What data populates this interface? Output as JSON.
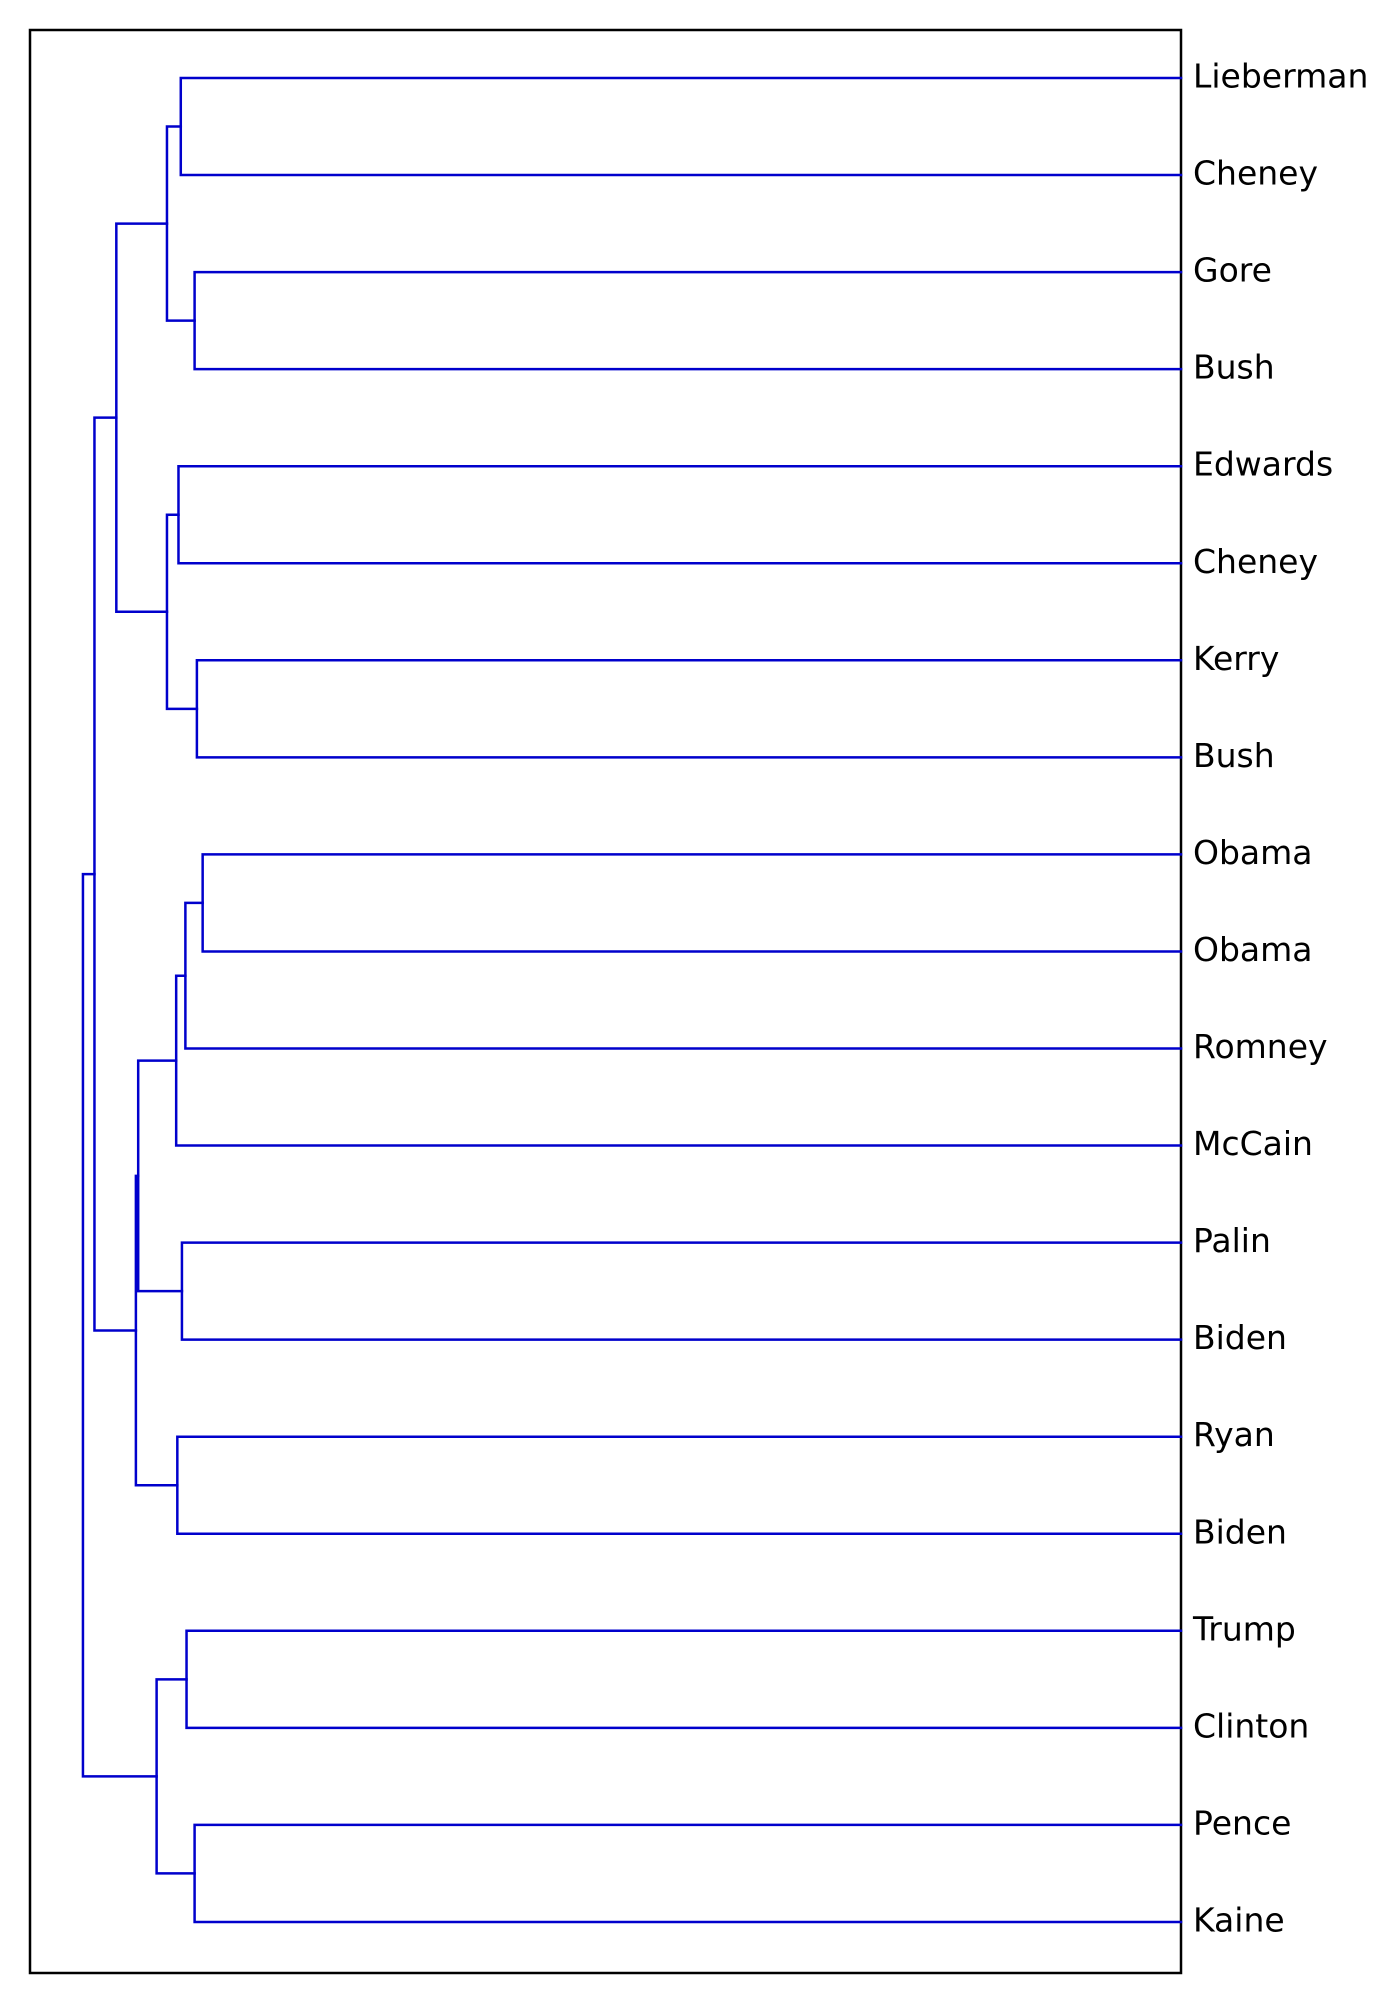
{
  "chart_data": {
    "type": "dendrogram",
    "orientation": "right",
    "link_color": "#0000cc",
    "leaves": [
      "Lieberman",
      "Cheney",
      "Gore",
      "Bush",
      "Edwards",
      "Cheney",
      "Kerry",
      "Bush",
      "Obama",
      "Obama",
      "Romney",
      "McCain",
      "Palin",
      "Biden",
      "Ryan",
      "Biden",
      "Trump",
      "Clinton",
      "Pence",
      "Kaine"
    ],
    "merges": [
      {
        "left": "L0",
        "right": "L1",
        "height": 0.869
      },
      {
        "left": "L2",
        "right": "L3",
        "height": 0.857
      },
      {
        "left": "M0",
        "right": "M1",
        "height": 0.881
      },
      {
        "left": "L4",
        "right": "L5",
        "height": 0.871
      },
      {
        "left": "L6",
        "right": "L7",
        "height": 0.855
      },
      {
        "left": "M3",
        "right": "M4",
        "height": 0.881
      },
      {
        "left": "M2",
        "right": "M5",
        "height": 0.925
      },
      {
        "left": "L8",
        "right": "L9",
        "height": 0.85
      },
      {
        "left": "M7",
        "right": "L10",
        "height": 0.865
      },
      {
        "left": "M8",
        "right": "L11",
        "height": 0.873
      },
      {
        "left": "L12",
        "right": "L13",
        "height": 0.868
      },
      {
        "left": "M9",
        "right": "M10",
        "height": 0.906
      },
      {
        "left": "L14",
        "right": "L15",
        "height": 0.872
      },
      {
        "left": "M11",
        "right": "M12",
        "height": 0.908
      },
      {
        "left": "M6",
        "right": "M13",
        "height": 0.944
      },
      {
        "left": "L16",
        "right": "L17",
        "height": 0.864
      },
      {
        "left": "L18",
        "right": "L19",
        "height": 0.857
      },
      {
        "left": "M15",
        "right": "M16",
        "height": 0.89
      },
      {
        "left": "M14",
        "right": "M17",
        "height": 0.954
      }
    ],
    "xlim": [
      1.0,
      0.0
    ],
    "axes_visible": false,
    "grid": false,
    "legend": "none"
  }
}
